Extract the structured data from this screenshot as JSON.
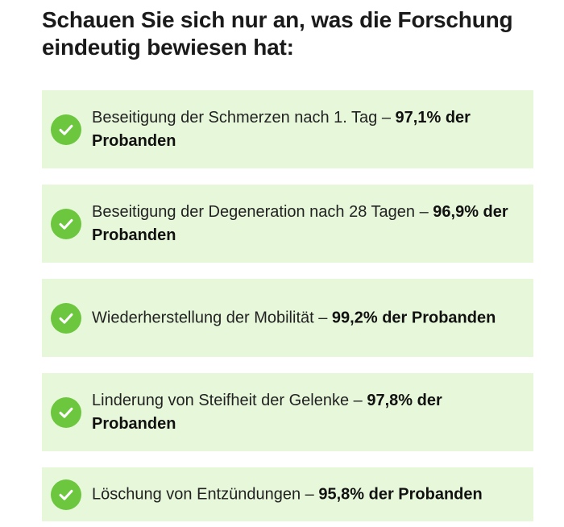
{
  "heading": "Schauen Sie sich nur an, was die Forschung eindeutig bewiesen hat:",
  "items": [
    {
      "text": "Beseitigung der Schmerzen nach 1. Tag – ",
      "stat": "97,1% der Probanden",
      "icon": "checkmark-circle-icon"
    },
    {
      "text": "Beseitigung der Degeneration nach 28 Tagen – ",
      "stat": "96,9% der Probanden",
      "icon": "checkmark-circle-icon"
    },
    {
      "text": "Wiederherstellung der Mobilität – ",
      "stat": "99,2% der Probanden",
      "icon": "checkmark-circle-icon"
    },
    {
      "text": "Linderung von Steifheit der Gelenke – ",
      "stat": "97,8% der Probanden",
      "icon": "checkmark-circle-icon"
    },
    {
      "text": "Löschung von Entzündungen – ",
      "stat": "95,8% der Probanden",
      "icon": "checkmark-circle-icon"
    }
  ],
  "colors": {
    "item_background": "#e7f8da",
    "check_green": "#6cc73f",
    "heading_text": "#1a1a1a"
  }
}
